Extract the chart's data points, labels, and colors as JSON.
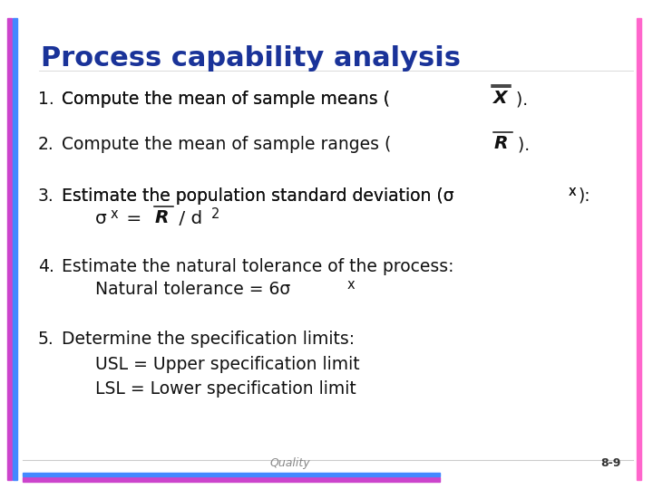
{
  "title": "Process capability analysis",
  "title_color": "#1a3399",
  "title_fontsize": 22,
  "body_fontsize": 13.5,
  "body_color": "#111111",
  "background_color": "#ffffff",
  "left_bar_colors": [
    "#9933cc",
    "#3399ff"
  ],
  "bottom_bar_colors": [
    "#cc33cc",
    "#3399ff"
  ],
  "right_bar_color": "#ff66cc",
  "footer_text": "Quality",
  "footer_right": "8-9",
  "items": [
    {
      "num": "1.",
      "text_parts": [
        {
          "text": "Compute the mean of sample means ( ",
          "style": "normal"
        },
        {
          "text": "X",
          "style": "xbar"
        },
        {
          "text": " ).",
          "style": "normal"
        }
      ]
    },
    {
      "num": "2.",
      "text_parts": [
        {
          "text": "Compute the mean of sample ranges ( ",
          "style": "normal"
        },
        {
          "text": "R",
          "style": "rbar"
        },
        {
          "text": " ).",
          "style": "normal"
        }
      ]
    },
    {
      "num": "3.",
      "text_parts": [
        {
          "text": "Estimate the population standard deviation (σ",
          "style": "normal"
        },
        {
          "text": "x",
          "style": "subscript"
        },
        {
          "text": "):",
          "style": "normal"
        }
      ],
      "sub_lines": [
        {
          "parts": [
            {
              "text": "σ",
              "style": "normal"
            },
            {
              "text": "x",
              "style": "subscript"
            },
            {
              "text": " = ",
              "style": "normal"
            },
            {
              "text": "R",
              "style": "rbar"
            },
            {
              "text": " / d",
              "style": "normal"
            },
            {
              "text": "2",
              "style": "subscript"
            }
          ]
        }
      ]
    },
    {
      "num": "4.",
      "text_parts": [
        {
          "text": "Estimate the natural tolerance of the process:",
          "style": "normal"
        }
      ],
      "sub_lines": [
        {
          "parts": [
            {
              "text": "Natural tolerance = 6σ",
              "style": "normal"
            },
            {
              "text": "x",
              "style": "subscript"
            }
          ]
        }
      ]
    },
    {
      "num": "5.",
      "text_parts": [
        {
          "text": "Determine the specification limits:",
          "style": "normal"
        }
      ],
      "sub_lines": [
        {
          "parts": [
            {
              "text": "USL = Upper specification limit",
              "style": "normal"
            }
          ]
        },
        {
          "parts": [
            {
              "text": "LSL = Lower specification limit",
              "style": "normal"
            }
          ]
        }
      ]
    }
  ]
}
